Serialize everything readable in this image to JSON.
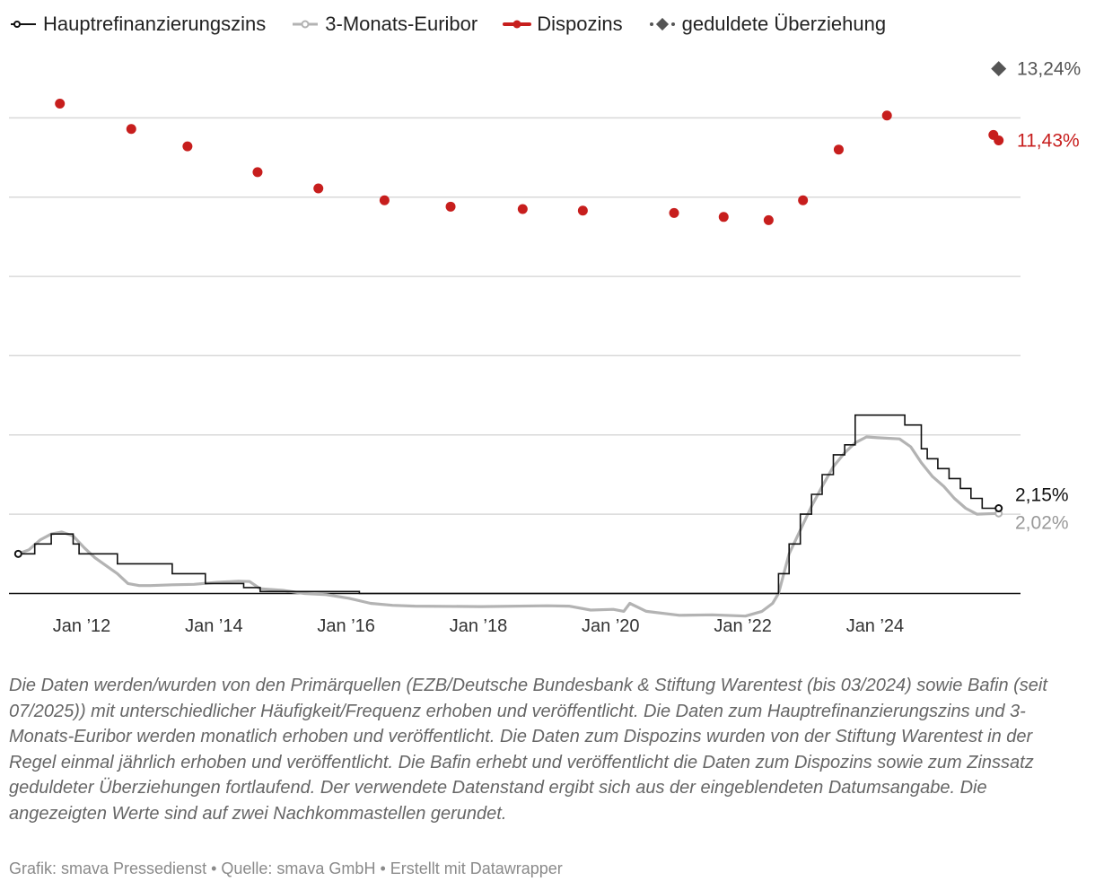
{
  "legend": [
    {
      "label": "Hauptrefinanzierungszins",
      "color": "#111111",
      "marker": "open-circle"
    },
    {
      "label": "3-Monats-Euribor",
      "color": "#b3b3b3",
      "marker": "open-circle"
    },
    {
      "label": "Dispozins",
      "color": "#c71e1d",
      "marker": "dot"
    },
    {
      "label": "geduldete Überziehung",
      "color": "#555555",
      "marker": "diamond"
    }
  ],
  "notes": "Die Daten werden/wurden von den Primärquellen (EZB/Deutsche Bundesbank & Stiftung Warentest (bis 03/2024) sowie Bafin (seit 07/2025)) mit unterschiedlicher Häufigkeit/Frequenz erhoben und veröffentlicht. Die Daten zum Hauptrefinanzierungszins und 3-Monats-Euribor werden monatlich erhoben und veröffentlicht. Die Daten zum Dispozins wurden von der Stiftung Warentest in der Regel einmal jährlich erhoben und veröffentlicht. Die Bafin erhebt und veröffentlicht die Daten zum Dispozins sowie zum Zinssatz geduldeter Überziehungen fortlaufend. Der verwendete Datenstand ergibt sich aus der eingeblendeten Datumsangabe. Die angezeigten Werte sind auf zwei Nachkommastellen gerundet.",
  "credit": "Grafik: smava Pressedienst • Quelle: smava GmbH • Erstellt mit Datawrapper",
  "chart_data": {
    "type": "line",
    "y_range": [
      -0.6,
      14
    ],
    "y_gridlines": [
      2,
      4,
      6,
      8,
      10,
      12
    ],
    "grid": true,
    "x_range": [
      2010.9,
      2026.2
    ],
    "x_ticks": [
      {
        "x": 2012.0,
        "label": "Jan ’12"
      },
      {
        "x": 2014.0,
        "label": "Jan ’14"
      },
      {
        "x": 2016.0,
        "label": "Jan ’16"
      },
      {
        "x": 2018.0,
        "label": "Jan ’18"
      },
      {
        "x": 2020.0,
        "label": "Jan ’20"
      },
      {
        "x": 2022.0,
        "label": "Jan ’22"
      },
      {
        "x": 2024.0,
        "label": "Jan ’24"
      }
    ],
    "series": [
      {
        "name": "Hauptrefinanzierungszins",
        "color": "#111111",
        "style": "step",
        "end_label": "2,15%",
        "points": [
          [
            2011.04,
            1.0
          ],
          [
            2011.29,
            1.25
          ],
          [
            2011.54,
            1.5
          ],
          [
            2011.87,
            1.25
          ],
          [
            2011.96,
            1.0
          ],
          [
            2012.54,
            0.75
          ],
          [
            2013.37,
            0.5
          ],
          [
            2013.87,
            0.25
          ],
          [
            2014.45,
            0.15
          ],
          [
            2014.7,
            0.05
          ],
          [
            2016.2,
            0.0
          ],
          [
            2022.54,
            0.5
          ],
          [
            2022.7,
            1.25
          ],
          [
            2022.87,
            2.0
          ],
          [
            2023.04,
            2.5
          ],
          [
            2023.2,
            3.0
          ],
          [
            2023.37,
            3.5
          ],
          [
            2023.54,
            3.75
          ],
          [
            2023.7,
            4.5
          ],
          [
            2024.45,
            4.25
          ],
          [
            2024.7,
            3.65
          ],
          [
            2024.79,
            3.4
          ],
          [
            2024.95,
            3.15
          ],
          [
            2025.12,
            2.9
          ],
          [
            2025.29,
            2.65
          ],
          [
            2025.45,
            2.4
          ],
          [
            2025.62,
            2.15
          ],
          [
            2025.87,
            2.15
          ]
        ]
      },
      {
        "name": "3-Monats-Euribor",
        "color": "#b3b3b3",
        "style": "smooth",
        "end_label": "2,02%",
        "points": [
          [
            2011.04,
            1.0
          ],
          [
            2011.2,
            1.1
          ],
          [
            2011.37,
            1.35
          ],
          [
            2011.54,
            1.5
          ],
          [
            2011.7,
            1.55
          ],
          [
            2011.87,
            1.45
          ],
          [
            2012.04,
            1.15
          ],
          [
            2012.2,
            0.9
          ],
          [
            2012.37,
            0.7
          ],
          [
            2012.54,
            0.5
          ],
          [
            2012.7,
            0.25
          ],
          [
            2012.87,
            0.2
          ],
          [
            2013.04,
            0.2
          ],
          [
            2013.37,
            0.22
          ],
          [
            2013.7,
            0.23
          ],
          [
            2014.04,
            0.28
          ],
          [
            2014.37,
            0.31
          ],
          [
            2014.54,
            0.3
          ],
          [
            2014.7,
            0.12
          ],
          [
            2015.04,
            0.08
          ],
          [
            2015.37,
            0.0
          ],
          [
            2015.7,
            -0.03
          ],
          [
            2016.04,
            -0.12
          ],
          [
            2016.37,
            -0.25
          ],
          [
            2016.7,
            -0.3
          ],
          [
            2017.04,
            -0.32
          ],
          [
            2018.04,
            -0.33
          ],
          [
            2019.04,
            -0.31
          ],
          [
            2019.37,
            -0.32
          ],
          [
            2019.7,
            -0.42
          ],
          [
            2020.04,
            -0.4
          ],
          [
            2020.2,
            -0.45
          ],
          [
            2020.29,
            -0.25
          ],
          [
            2020.54,
            -0.45
          ],
          [
            2021.04,
            -0.55
          ],
          [
            2021.54,
            -0.54
          ],
          [
            2022.04,
            -0.57
          ],
          [
            2022.29,
            -0.45
          ],
          [
            2022.45,
            -0.25
          ],
          [
            2022.54,
            0.0
          ],
          [
            2022.7,
            1.0
          ],
          [
            2022.87,
            1.6
          ],
          [
            2023.04,
            2.2
          ],
          [
            2023.2,
            2.7
          ],
          [
            2023.37,
            3.2
          ],
          [
            2023.54,
            3.55
          ],
          [
            2023.7,
            3.8
          ],
          [
            2023.87,
            3.95
          ],
          [
            2024.04,
            3.93
          ],
          [
            2024.37,
            3.9
          ],
          [
            2024.54,
            3.7
          ],
          [
            2024.7,
            3.3
          ],
          [
            2024.87,
            2.95
          ],
          [
            2025.04,
            2.7
          ],
          [
            2025.2,
            2.4
          ],
          [
            2025.37,
            2.15
          ],
          [
            2025.54,
            2.0
          ],
          [
            2025.7,
            2.01
          ],
          [
            2025.87,
            2.02
          ]
        ]
      },
      {
        "name": "Dispozins",
        "color": "#c71e1d",
        "style": "dots",
        "end_label": "11,43%",
        "points": [
          [
            2011.67,
            12.36
          ],
          [
            2012.75,
            11.72
          ],
          [
            2013.6,
            11.28
          ],
          [
            2014.66,
            10.63
          ],
          [
            2015.58,
            10.22
          ],
          [
            2016.58,
            9.92
          ],
          [
            2017.58,
            9.76
          ],
          [
            2018.67,
            9.7
          ],
          [
            2019.58,
            9.66
          ],
          [
            2020.96,
            9.6
          ],
          [
            2021.71,
            9.5
          ],
          [
            2022.39,
            9.42
          ],
          [
            2022.91,
            9.92
          ],
          [
            2023.45,
            11.2
          ],
          [
            2024.18,
            12.06
          ],
          [
            2025.79,
            11.57
          ],
          [
            2025.87,
            11.43
          ]
        ]
      },
      {
        "name": "geduldete Überziehung",
        "color": "#555555",
        "style": "diamond",
        "end_label": "13,24%",
        "points": [
          [
            2025.87,
            13.24
          ]
        ]
      }
    ]
  }
}
